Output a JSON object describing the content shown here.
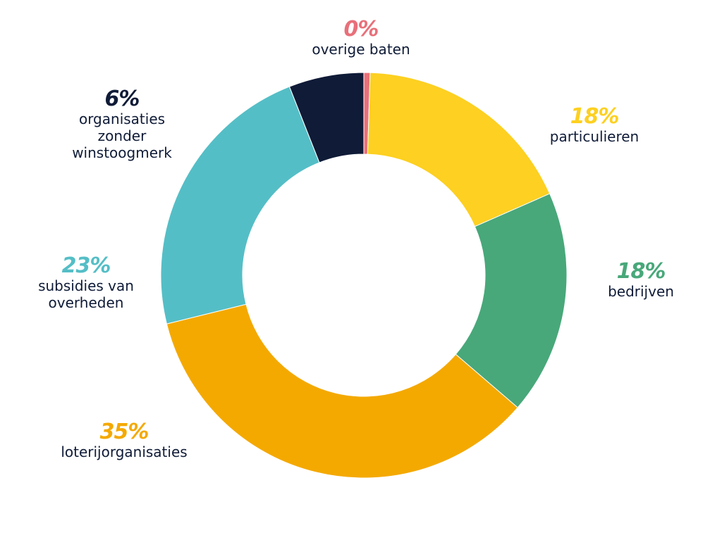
{
  "chart_data": {
    "type": "pie",
    "categories": [
      "overige baten",
      "particulieren",
      "bedrijven",
      "loterijorganisaties",
      "subsidies van overheden",
      "organisaties zonder winstoogmerk"
    ],
    "values": [
      0.5,
      18,
      18,
      35,
      23,
      6
    ],
    "colors": [
      "#e8707a",
      "#fdd021",
      "#48a87a",
      "#f4a900",
      "#54bec6",
      "#0f1b37"
    ],
    "donut": true,
    "title": "",
    "grid": false,
    "legend": "none"
  },
  "labels": [
    {
      "pct": "0%",
      "name": "overige baten",
      "color": "#e8707a"
    },
    {
      "pct": "18%",
      "name": "particulieren",
      "color": "#fdd021"
    },
    {
      "pct": "18%",
      "name": "bedrijven",
      "color": "#48a87a"
    },
    {
      "pct": "35%",
      "name": "loterijorganisaties",
      "color": "#f4a900"
    },
    {
      "pct": "23%",
      "name": "subsidies van\noverheden",
      "color": "#54bec6"
    },
    {
      "pct": "6%",
      "name": "organisaties\nzonder\nwinstoogmerk",
      "color": "#0f1b37"
    }
  ]
}
